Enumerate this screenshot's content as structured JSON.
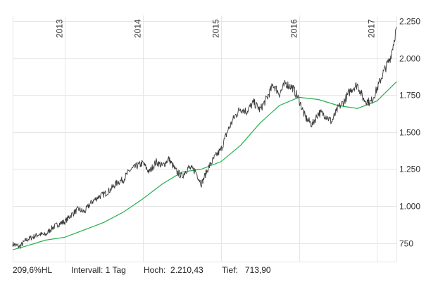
{
  "colors": {
    "price_line": "#3a3a3a",
    "moving_average_line": "#22b14c",
    "grid": "#e6e6e6",
    "background": "#ffffff"
  },
  "footer": {
    "perf": "209,6%HL",
    "interval": "Intervall: 1 Tag",
    "high": "Hoch:  2.210,43",
    "low": "Tief:   713,90"
  },
  "chart_data": {
    "type": "line",
    "x_ticks": [
      "2013",
      "2014",
      "2015",
      "2016",
      "2017"
    ],
    "y_ticks": [
      "2.250",
      "2.000",
      "1.750",
      "1.500",
      "1.250",
      "1.000",
      "750"
    ],
    "y_tick_values": [
      2250,
      2000,
      1750,
      1500,
      1250,
      1000,
      750
    ],
    "xlim": [
      2012.33,
      2017.25
    ],
    "ylim": [
      625,
      2250
    ],
    "grid": true,
    "series": [
      {
        "kind": "price",
        "x": [
          2012.33,
          2012.42,
          2012.5,
          2012.58,
          2012.67,
          2012.75,
          2012.83,
          2012.92,
          2013.0,
          2013.08,
          2013.17,
          2013.25,
          2013.33,
          2013.42,
          2013.5,
          2013.58,
          2013.67,
          2013.75,
          2013.83,
          2013.92,
          2014.0,
          2014.08,
          2014.17,
          2014.25,
          2014.33,
          2014.42,
          2014.5,
          2014.58,
          2014.67,
          2014.75,
          2014.83,
          2014.92,
          2015.0,
          2015.08,
          2015.17,
          2015.25,
          2015.33,
          2015.42,
          2015.5,
          2015.58,
          2015.67,
          2015.75,
          2015.83,
          2015.92,
          2016.0,
          2016.08,
          2016.17,
          2016.25,
          2016.33,
          2016.42,
          2016.5,
          2016.58,
          2016.67,
          2016.75,
          2016.83,
          2016.92,
          2017.0,
          2017.08,
          2017.17,
          2017.22,
          2017.25
        ],
        "y": [
          745,
          725,
          770,
          790,
          810,
          805,
          850,
          880,
          895,
          940,
          980,
          960,
          1020,
          1060,
          1080,
          1110,
          1160,
          1180,
          1240,
          1270,
          1290,
          1230,
          1300,
          1270,
          1320,
          1240,
          1200,
          1260,
          1240,
          1150,
          1250,
          1330,
          1380,
          1500,
          1600,
          1660,
          1640,
          1700,
          1650,
          1720,
          1820,
          1760,
          1830,
          1800,
          1720,
          1600,
          1550,
          1630,
          1620,
          1570,
          1660,
          1710,
          1790,
          1820,
          1720,
          1700,
          1790,
          1900,
          2000,
          2120,
          2210
        ]
      },
      {
        "kind": "moving_average",
        "x": [
          2012.33,
          2012.5,
          2012.75,
          2013.0,
          2013.25,
          2013.5,
          2013.75,
          2014.0,
          2014.25,
          2014.5,
          2014.75,
          2015.0,
          2015.25,
          2015.5,
          2015.75,
          2016.0,
          2016.25,
          2016.5,
          2016.75,
          2017.0,
          2017.25
        ],
        "y": [
          705,
          730,
          770,
          790,
          840,
          890,
          960,
          1050,
          1150,
          1230,
          1250,
          1300,
          1410,
          1560,
          1680,
          1735,
          1720,
          1680,
          1660,
          1710,
          1840
        ]
      }
    ]
  }
}
